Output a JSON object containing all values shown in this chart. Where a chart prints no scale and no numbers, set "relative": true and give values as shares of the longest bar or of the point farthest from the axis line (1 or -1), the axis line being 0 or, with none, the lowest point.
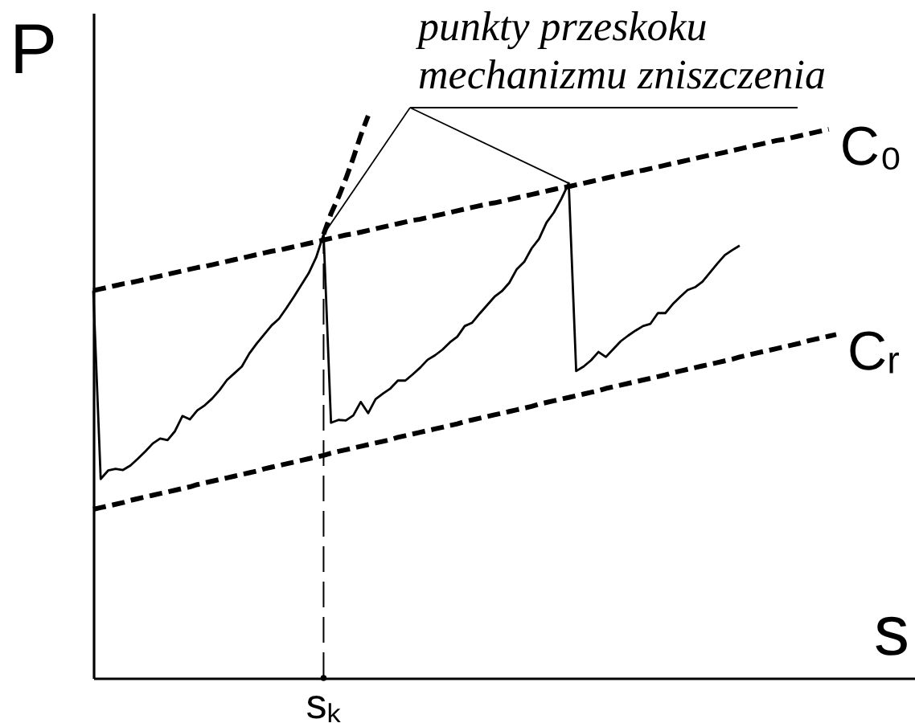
{
  "chart_data": {
    "type": "line",
    "relative": true,
    "xlabel": "s",
    "ylabel": "P",
    "grid": false,
    "legend": false,
    "categories": [
      null,
      null,
      null,
      null,
      null,
      null,
      null,
      null,
      null,
      null,
      null,
      null,
      null,
      null,
      null,
      null,
      null,
      null,
      null,
      null,
      null,
      null,
      null,
      null,
      null,
      null,
      null,
      null,
      null,
      null,
      null,
      null,
      null,
      null,
      null,
      null,
      null,
      null,
      null,
      null,
      null,
      null,
      null,
      null,
      null,
      null,
      null,
      null,
      null,
      null,
      null,
      null,
      null,
      null,
      null,
      null,
      null,
      null,
      null,
      null,
      null,
      null,
      null,
      null,
      null,
      null,
      null,
      null,
      null,
      null,
      null,
      null,
      null,
      null,
      null,
      null,
      null,
      null,
      null,
      null,
      null,
      null,
      null,
      null,
      null,
      null,
      null,
      null,
      null,
      null,
      null,
      null,
      null,
      null,
      null,
      null,
      null,
      null,
      null,
      null,
      null
    ],
    "series": [
      {
        "name": "C₀",
        "line_style": "dashed",
        "color": "#000000",
        "values": [
          0.689,
          0.692,
          0.695,
          0.698,
          0.701,
          0.703,
          0.706,
          0.709,
          0.712,
          0.715,
          0.718,
          0.721,
          0.724,
          0.727,
          0.73,
          0.732,
          0.735,
          0.738,
          0.741,
          0.744,
          0.747,
          0.75,
          0.753,
          0.756,
          0.759,
          0.761,
          0.764,
          0.767,
          0.77,
          0.773,
          0.776,
          0.779,
          0.782,
          0.785,
          0.788,
          0.79,
          0.793,
          0.796,
          0.799,
          0.802,
          0.805,
          0.808,
          0.811,
          0.814,
          0.816,
          0.819,
          0.822,
          0.825,
          0.828,
          0.831,
          0.834,
          0.837,
          0.84,
          0.843,
          0.845,
          0.848,
          0.851,
          0.854,
          0.857,
          0.86,
          0.863,
          0.866,
          0.869,
          0.872,
          0.874,
          0.877,
          0.88,
          0.883,
          0.886,
          0.889,
          0.892,
          0.895,
          0.898,
          0.901,
          0.903,
          0.906,
          0.909,
          0.912,
          0.915,
          0.918,
          0.921,
          0.924,
          0.927,
          0.93,
          0.932,
          0.935,
          0.938,
          0.941,
          0.944,
          0.947,
          0.95,
          0.953,
          0.956,
          0.958,
          0.961,
          0.964,
          0.967,
          0.97,
          0.973,
          0.976,
          null
        ]
      },
      {
        "name": "Cᵣ",
        "line_style": "dashed",
        "color": "#000000",
        "values": [
          0.3,
          0.303,
          0.306,
          0.309,
          0.312,
          0.316,
          0.319,
          0.322,
          0.325,
          0.328,
          0.331,
          0.334,
          0.337,
          0.34,
          0.344,
          0.347,
          0.35,
          0.353,
          0.356,
          0.359,
          0.362,
          0.365,
          0.368,
          0.372,
          0.375,
          0.378,
          0.381,
          0.384,
          0.387,
          0.39,
          0.393,
          0.396,
          0.4,
          0.403,
          0.406,
          0.409,
          0.412,
          0.415,
          0.418,
          0.421,
          0.424,
          0.428,
          0.431,
          0.434,
          0.437,
          0.44,
          0.443,
          0.446,
          0.449,
          0.452,
          0.456,
          0.459,
          0.462,
          0.465,
          0.468,
          0.471,
          0.474,
          0.477,
          0.48,
          0.483,
          0.487,
          0.49,
          0.493,
          0.496,
          0.499,
          0.502,
          0.505,
          0.508,
          0.511,
          0.515,
          0.518,
          0.521,
          0.524,
          0.527,
          0.53,
          0.533,
          0.536,
          0.539,
          0.543,
          0.546,
          0.549,
          0.552,
          0.555,
          0.558,
          0.561,
          0.564,
          0.567,
          0.571,
          0.574,
          0.577,
          0.58,
          0.583,
          0.586,
          0.589,
          0.592,
          0.595,
          0.599,
          0.602,
          0.605,
          0.608,
          0.611
        ]
      },
      {
        "line_style": "solid",
        "color": "#000000",
        "values": [
          0.689,
          0.354,
          0.369,
          0.372,
          0.37,
          0.378,
          0.39,
          0.403,
          0.417,
          0.426,
          0.423,
          0.439,
          0.466,
          0.46,
          0.476,
          0.485,
          0.497,
          0.512,
          0.53,
          0.542,
          0.554,
          0.577,
          0.595,
          0.611,
          0.627,
          0.639,
          0.658,
          0.678,
          0.699,
          0.72,
          0.748,
          0.789,
          0.454,
          0.459,
          0.458,
          0.467,
          0.491,
          0.471,
          0.496,
          0.506,
          0.515,
          0.529,
          0.529,
          0.54,
          0.552,
          0.566,
          0.574,
          0.584,
          0.597,
          0.607,
          0.626,
          0.632,
          0.648,
          0.663,
          0.678,
          0.688,
          0.703,
          0.727,
          0.74,
          0.764,
          0.781,
          0.81,
          0.828,
          0.852,
          0.88,
          0.546,
          0.554,
          0.565,
          0.58,
          0.571,
          0.585,
          0.599,
          0.609,
          0.618,
          0.626,
          0.63,
          0.649,
          0.649,
          0.665,
          0.678,
          0.69,
          0.695,
          0.705,
          0.721,
          0.737,
          0.752,
          0.761,
          0.769,
          null,
          null,
          null,
          null,
          null,
          null,
          null,
          null,
          null,
          null,
          null,
          null,
          null
        ]
      },
      {
        "line_style": "dashed",
        "color": "#000000",
        "values": [
          null,
          null,
          null,
          null,
          null,
          null,
          null,
          null,
          null,
          null,
          null,
          null,
          null,
          null,
          null,
          null,
          null,
          null,
          null,
          null,
          null,
          null,
          null,
          null,
          null,
          null,
          null,
          null,
          null,
          null,
          null,
          0.789,
          0.826,
          0.855,
          0.888,
          0.925,
          0.965,
          1.0,
          null,
          null,
          null,
          null,
          null,
          null,
          null,
          null,
          null,
          null,
          null,
          null,
          null,
          null,
          null,
          null,
          null,
          null,
          null,
          null,
          null,
          null,
          null,
          null,
          null,
          null,
          null,
          null,
          null,
          null,
          null,
          null,
          null,
          null,
          null,
          null,
          null,
          null,
          null,
          null,
          null,
          null,
          null,
          null,
          null,
          null,
          null,
          null,
          null,
          null,
          null,
          null,
          null,
          null,
          null,
          null,
          null,
          null,
          null,
          null,
          null,
          null,
          null
        ]
      }
    ],
    "annotations": [
      "punkty przeskoku\nmechanizmu zniszczenia",
      "sₖ"
    ]
  }
}
